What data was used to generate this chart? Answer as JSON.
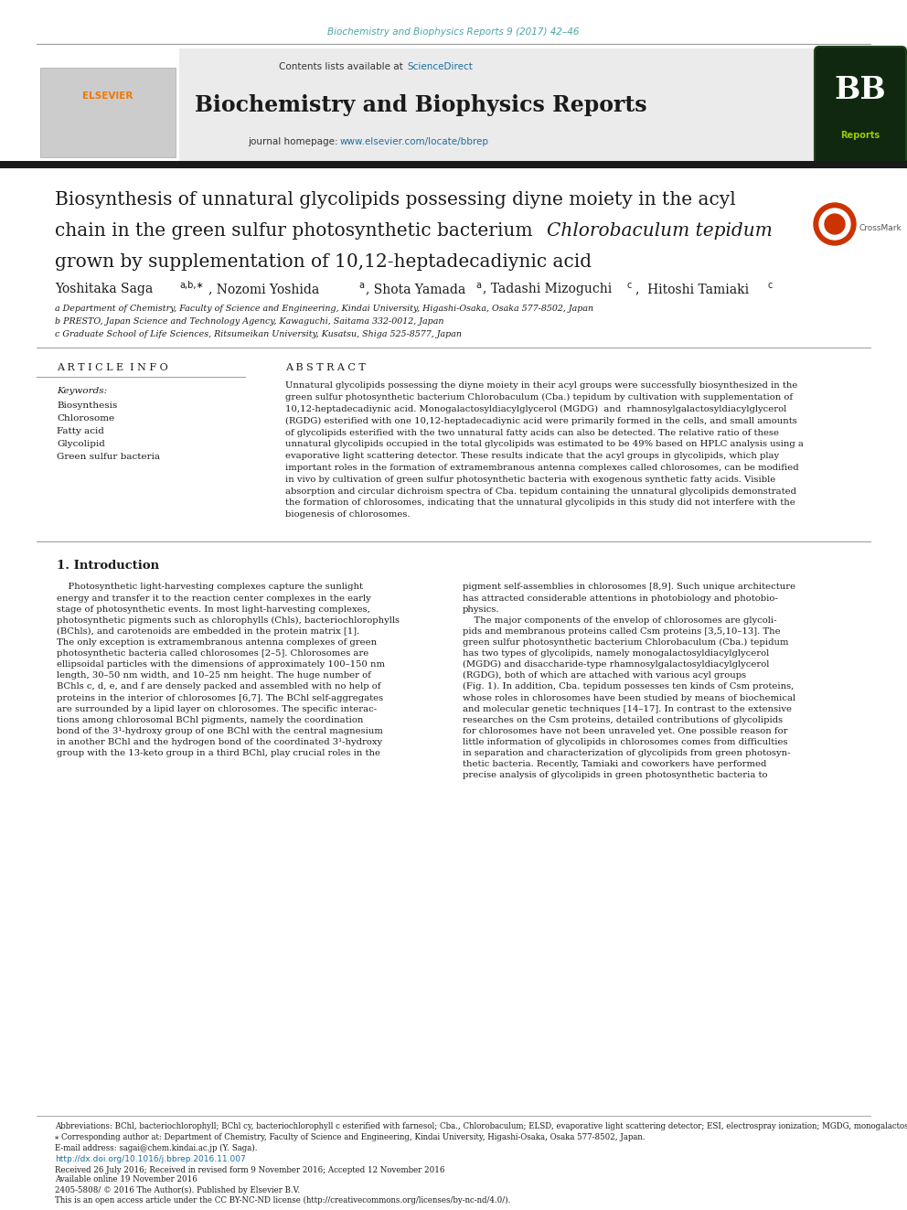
{
  "journal_ref": "Biochemistry and Biophysics Reports 9 (2017) 42–46",
  "contents_text": "Contents lists available at",
  "sciencedirect": "ScienceDirect",
  "journal_name": "Biochemistry and Biophysics Reports",
  "journal_homepage_label": "journal homepage:",
  "journal_url": "www.elsevier.com/locate/bbrep",
  "title_line1": "Biosynthesis of unnatural glycolipids possessing diyne moiety in the acyl",
  "title_line2_normal": "chain in the green sulfur photosynthetic bacterium ",
  "title_line2_italic": "Chlorobaculum tepidum",
  "title_line3": "grown by supplementation of 10,12-heptadecadiynic acid",
  "article_info_title": "A R T I C L E  I N F O",
  "abstract_title": "A B S T R A C T",
  "keywords_label": "Keywords:",
  "keywords": [
    "Biosynthesis",
    "Chlorosome",
    "Fatty acid",
    "Glycolipid",
    "Green sulfur bacteria"
  ],
  "affil_a": "a Department of Chemistry, Faculty of Science and Engineering, Kindai University, Higashi-Osaka, Osaka 577-8502, Japan",
  "affil_b": "b PRESTO, Japan Science and Technology Agency, Kawaguchi, Saitama 332-0012, Japan",
  "affil_c": "c Graduate School of Life Sciences, Ritsumeikan University, Kusatsu, Shiga 525-8577, Japan",
  "intro_title": "1. Introduction",
  "footnote_abbr": "Abbreviations: BChl, bacteriochlorophyll; BChl cy, bacteriochlorophyll c esterified with farnesol; Cba., Chlorobaculum; ELSD, evaporative light scattering detector; ESI, electrospray ionization; MGDG, monogalactosyldiacylglycerol; RGDG, rhamnosylgalactosyldiacylglycerol",
  "footnote_corr": "⁎ Corresponding author at: Department of Chemistry, Faculty of Science and Engineering, Kindai University, Higashi-Osaka, Osaka 577-8502, Japan.",
  "footnote_email": "E-mail address: sagai@chem.kindai.ac.jp (Y. Saga).",
  "footnote_doi": "http://dx.doi.org/10.1016/j.bbrep.2016.11.007",
  "footnote_received": "Received 26 July 2016; Received in revised form 9 November 2016; Accepted 12 November 2016",
  "footnote_available": "Available online 19 November 2016",
  "footnote_issn": "2405-5808/ © 2016 The Author(s). Published by Elsevier B.V.",
  "footnote_oa": "This is an open access article under the CC BY-NC-ND license (http://creativecommons.org/licenses/by-nc-nd/4.0/).",
  "bg_color": "#ffffff",
  "teal_color": "#4aa5a5",
  "blue_link": "#1a6fa0",
  "text_color": "#1a1a1a"
}
